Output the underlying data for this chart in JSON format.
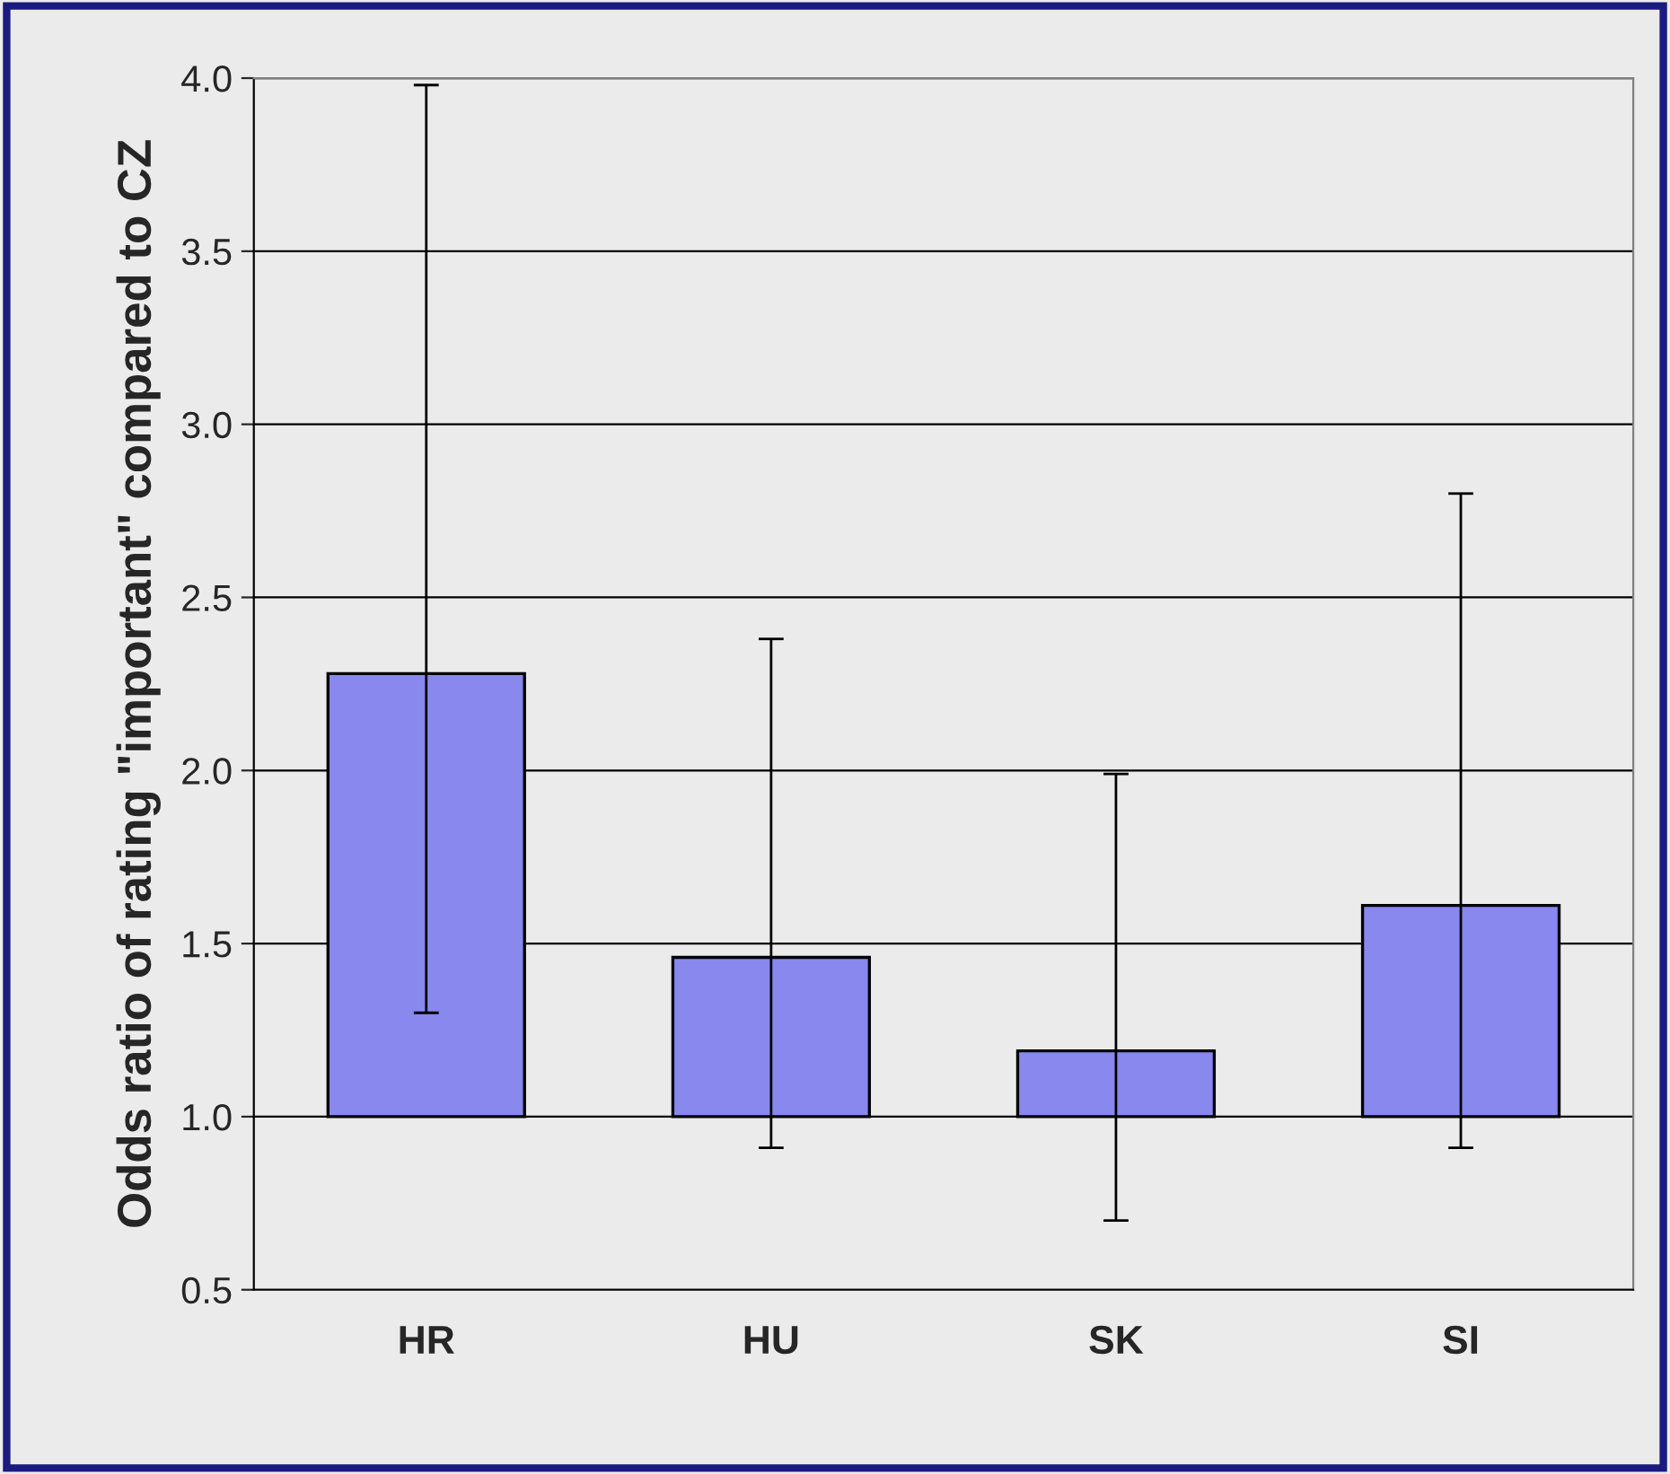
{
  "chart_data": {
    "type": "bar",
    "ylabel": "Odds ratio of rating \"important\" compared to CZ",
    "categories": [
      "HR",
      "HU",
      "SK",
      "SI"
    ],
    "base": [
      1.0,
      1.0,
      1.0,
      1.0
    ],
    "values": [
      1.28,
      0.46,
      0.19,
      0.61
    ],
    "errors": [
      [
        1.3,
        3.98
      ],
      [
        0.91,
        2.38
      ],
      [
        0.7,
        1.99
      ],
      [
        0.91,
        2.8
      ]
    ],
    "color": "#8888ee",
    "ylim": [
      0.5,
      4.0
    ],
    "yticks": [
      {
        "value": 0.5,
        "label": "0.5"
      },
      {
        "value": 1.0,
        "label": "1.0"
      },
      {
        "value": 1.5,
        "label": "1.5"
      },
      {
        "value": 2.0,
        "label": "2.0"
      },
      {
        "value": 2.5,
        "label": "2.5"
      },
      {
        "value": 3.0,
        "label": "3.0"
      },
      {
        "value": 3.5,
        "label": "3.5"
      },
      {
        "value": 4.0,
        "label": "4.0"
      }
    ],
    "grid": "y"
  }
}
